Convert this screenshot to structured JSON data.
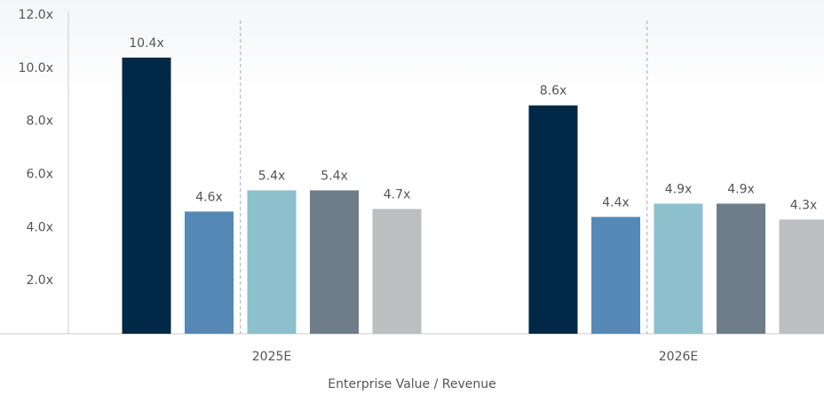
{
  "chart_data": {
    "type": "bar",
    "x_label": "Enterprise Value / Revenue",
    "categories": [
      "2025E",
      "2026E"
    ],
    "series": [
      {
        "color": "#022847",
        "values": [
          10.4,
          8.6
        ],
        "value_labels": [
          "10.4x",
          "8.6x"
        ]
      },
      {
        "color": "#5588b5",
        "values": [
          4.6,
          4.4
        ],
        "value_labels": [
          "4.6x",
          "4.4x"
        ]
      },
      {
        "color": "#8cc0cc",
        "values": [
          5.4,
          4.9
        ],
        "value_labels": [
          "5.4x",
          "4.9x"
        ]
      },
      {
        "color": "#6f7c89",
        "values": [
          5.4,
          4.9
        ],
        "value_labels": [
          "5.4x",
          "4.9x"
        ]
      },
      {
        "color": "#bdbec0",
        "values": [
          4.7,
          4.3
        ],
        "value_labels": [
          "4.7x",
          "4.3x"
        ]
      }
    ],
    "ylim": [
      0,
      12
    ],
    "yticks": [
      {
        "value": 2,
        "label": "2.0x"
      },
      {
        "value": 4,
        "label": "4.0x"
      },
      {
        "value": 6,
        "label": "6.0x"
      },
      {
        "value": 8,
        "label": "8.0x"
      },
      {
        "value": 10,
        "label": "10.0x"
      },
      {
        "value": 12,
        "label": "12.0x"
      }
    ],
    "grid": false
  }
}
